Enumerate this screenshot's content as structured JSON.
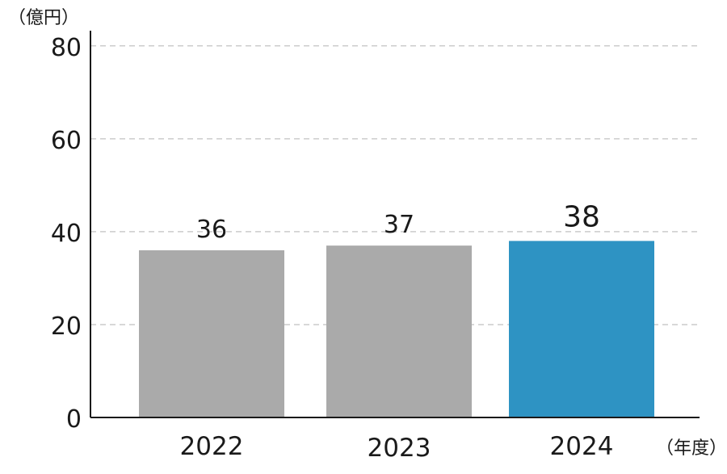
{
  "chart_data": {
    "type": "bar",
    "categories": [
      "2022",
      "2023",
      "2024"
    ],
    "values": [
      36,
      37,
      38
    ],
    "data_labels": [
      "36",
      "37",
      "38"
    ],
    "y_unit_label": "（億円）",
    "x_unit_label": "（年度）",
    "ylim": [
      0,
      85
    ],
    "yticks": [
      0,
      20,
      40,
      60,
      80
    ],
    "grid": true,
    "bar_colors": [
      "#aaaaaa",
      "#aaaaaa",
      "#2e93c3"
    ],
    "highlight_index": 2
  }
}
